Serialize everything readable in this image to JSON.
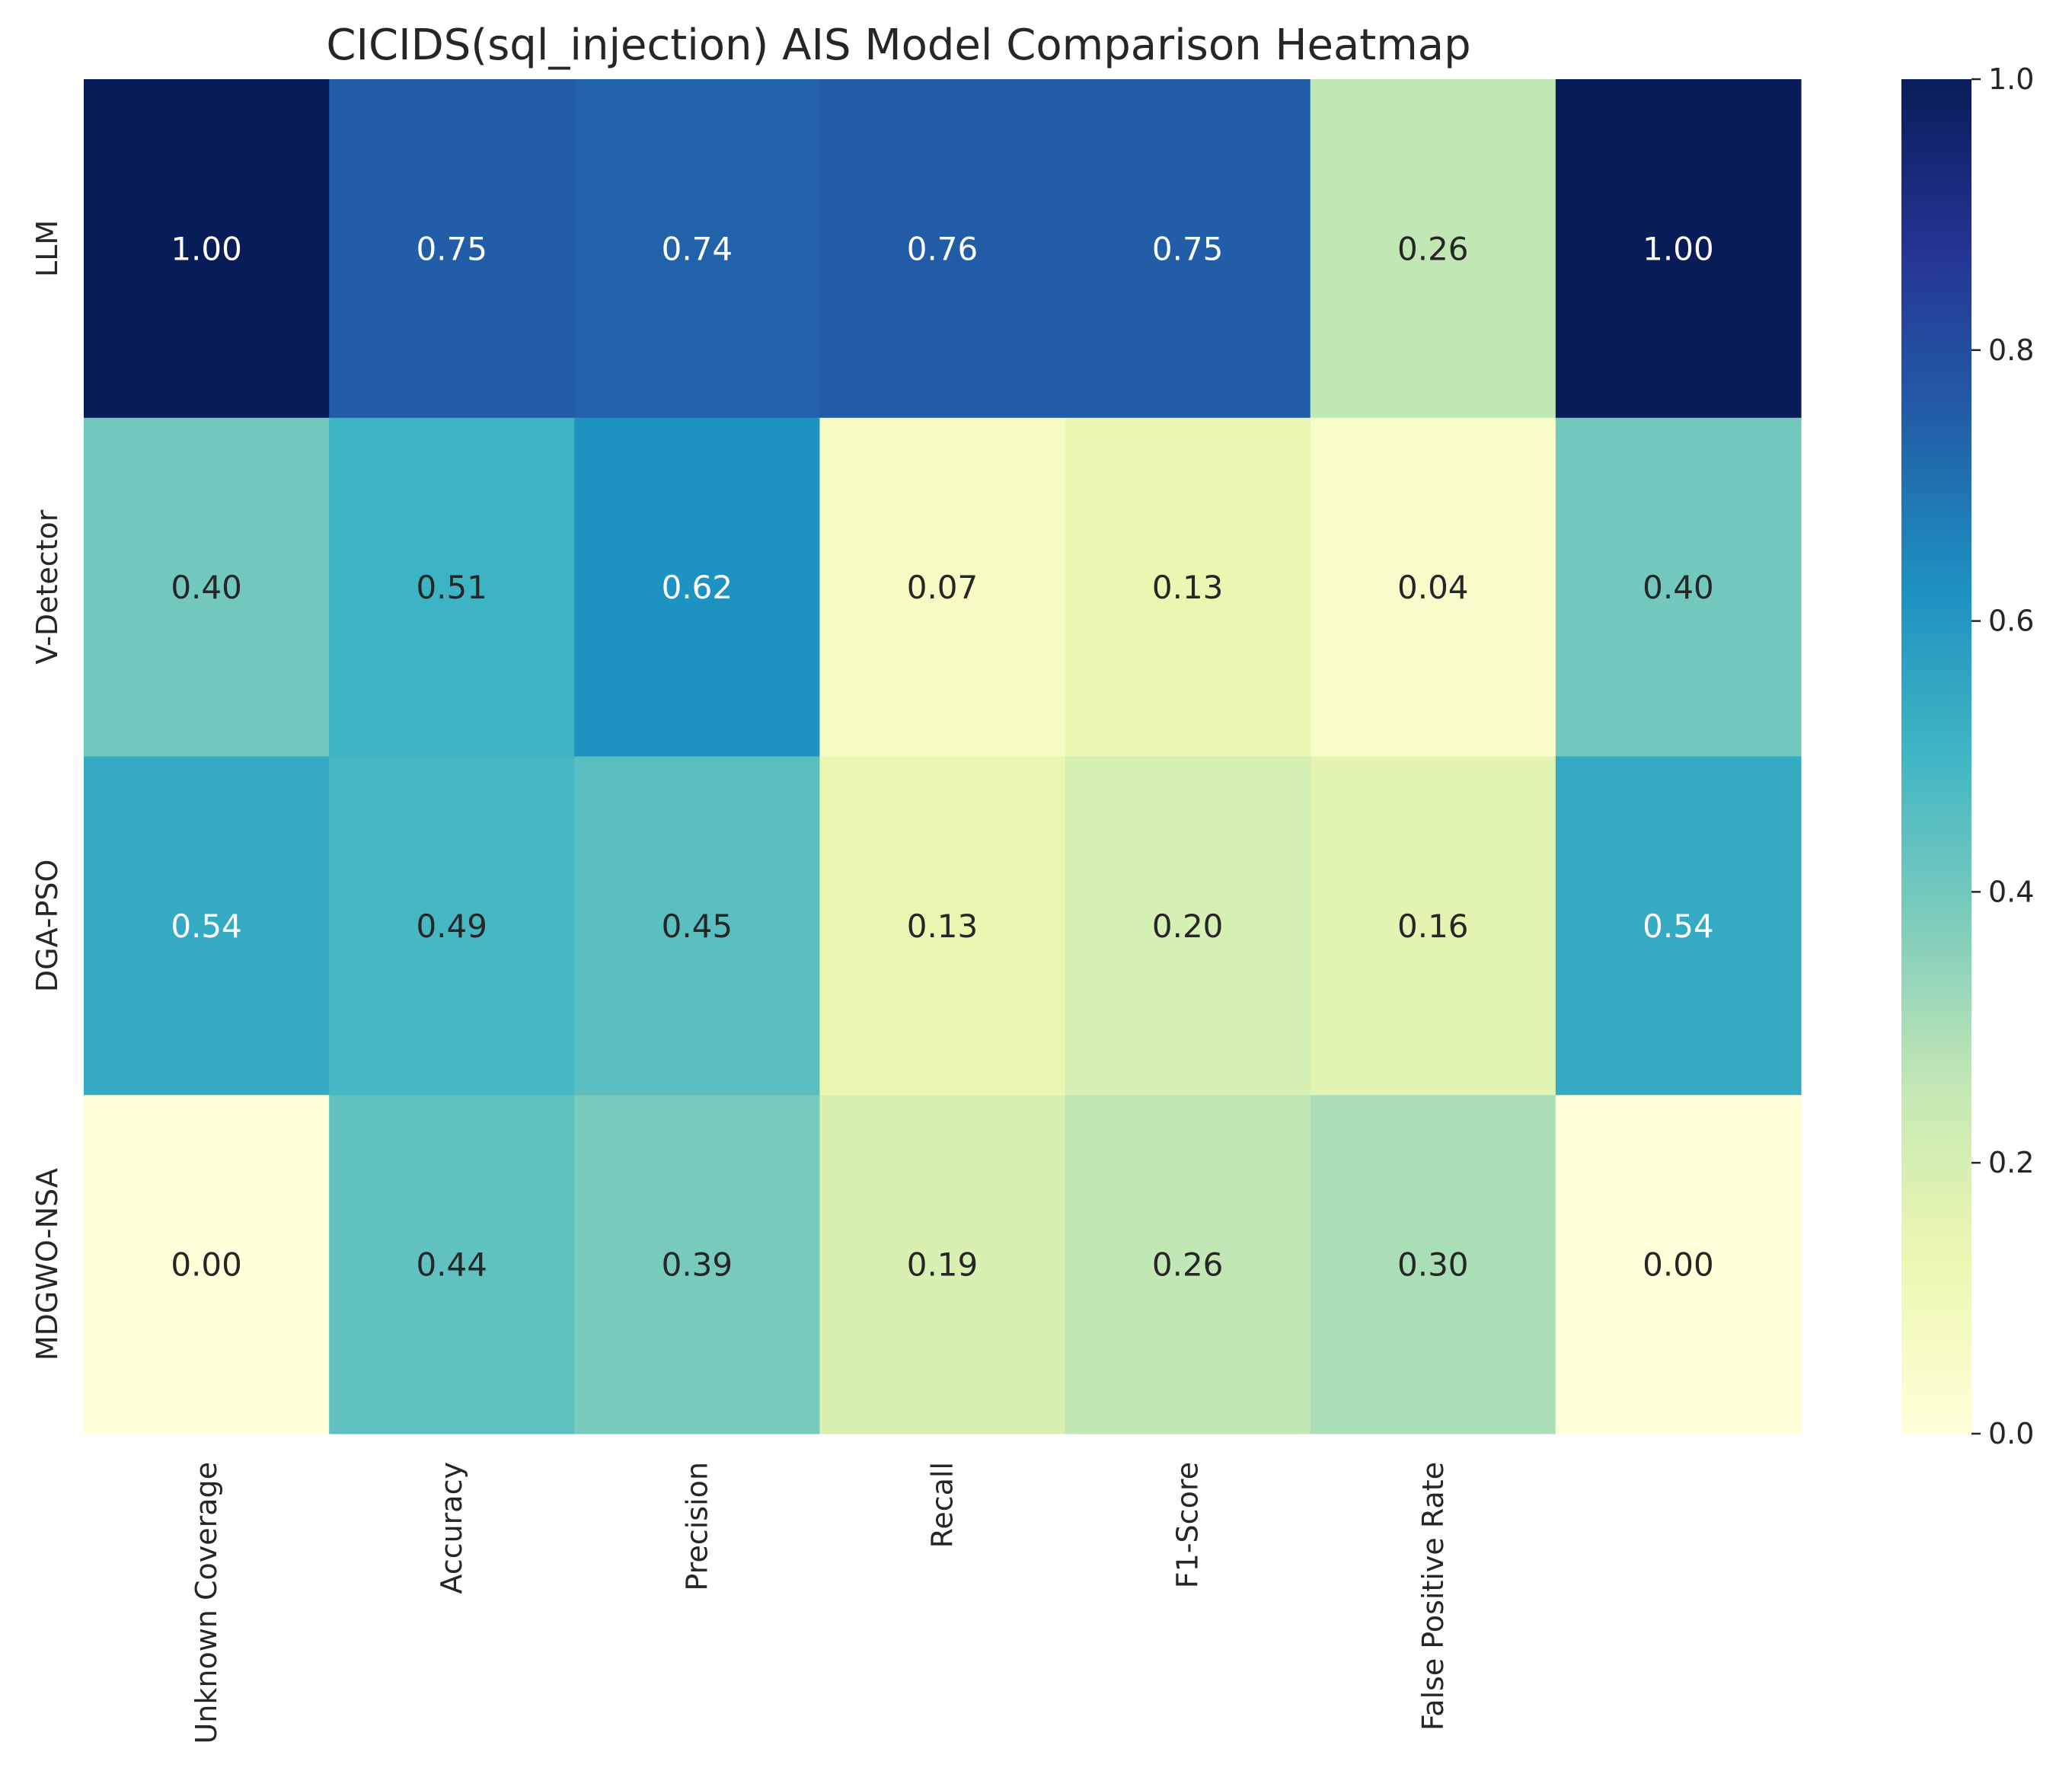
{
  "chart_data": {
    "type": "heatmap",
    "title": "CICIDS(sql_injection) AIS Model Comparison Heatmap",
    "xlabel": "",
    "ylabel": "",
    "colormap": "YlGnBu",
    "x_categories": [
      "Unknown Coverage",
      "Accuracy",
      "Precision",
      "Recall",
      "F1-Score",
      "False Positive Rate",
      ""
    ],
    "y_categories": [
      "LLM",
      "V-Detector",
      "DGA-PSO",
      "MDGWO-NSA"
    ],
    "values": [
      [
        1.0,
        0.75,
        0.74,
        0.76,
        0.75,
        0.26,
        1.0
      ],
      [
        0.4,
        0.51,
        0.62,
        0.07,
        0.13,
        0.04,
        0.4
      ],
      [
        0.54,
        0.49,
        0.45,
        0.13,
        0.2,
        0.16,
        0.54
      ],
      [
        0.0,
        0.44,
        0.39,
        0.19,
        0.26,
        0.3,
        0.0
      ]
    ],
    "annotation_format": "0.00",
    "colorbar": {
      "range": [
        0.0,
        1.0
      ],
      "ticks": [
        "0.0",
        "0.2",
        "0.4",
        "0.6",
        "0.8",
        "1.0"
      ]
    }
  },
  "colors": {
    "text_dark": "#262626",
    "text_light": "#ffffff",
    "colormap_stops": [
      "#ffffd9",
      "#edf8b1",
      "#c7e9b4",
      "#7fcdbb",
      "#41b6c4",
      "#1d91c0",
      "#225ea8",
      "#253494",
      "#081d58"
    ]
  }
}
